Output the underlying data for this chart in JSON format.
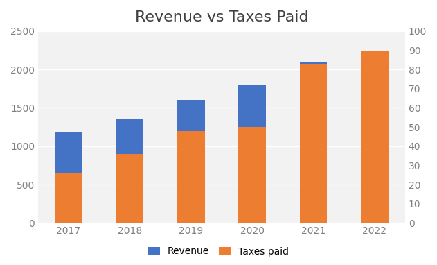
{
  "years": [
    "2017",
    "2018",
    "2019",
    "2020",
    "2021",
    "2022"
  ],
  "taxes_paid": [
    650,
    900,
    1200,
    1250,
    2075,
    2250
  ],
  "revenue": [
    525,
    450,
    400,
    550,
    30,
    0
  ],
  "revenue_color": "#4472C4",
  "taxes_color": "#ED7D31",
  "title": "Revenue vs Taxes Paid",
  "title_fontsize": 16,
  "title_color": "#404040",
  "left_ylim": [
    0,
    2500
  ],
  "right_ylim": [
    0,
    100
  ],
  "left_yticks": [
    0,
    500,
    1000,
    1500,
    2000,
    2500
  ],
  "right_yticks": [
    0,
    10,
    20,
    30,
    40,
    50,
    60,
    70,
    80,
    90,
    100
  ],
  "legend_labels": [
    "Revenue",
    "Taxes paid"
  ],
  "figure_bg": "#ffffff",
  "plot_bg": "#f2f2f2",
  "grid_color": "#ffffff",
  "tick_color": "#808080",
  "bar_width": 0.45,
  "tick_fontsize": 10,
  "legend_fontsize": 10
}
